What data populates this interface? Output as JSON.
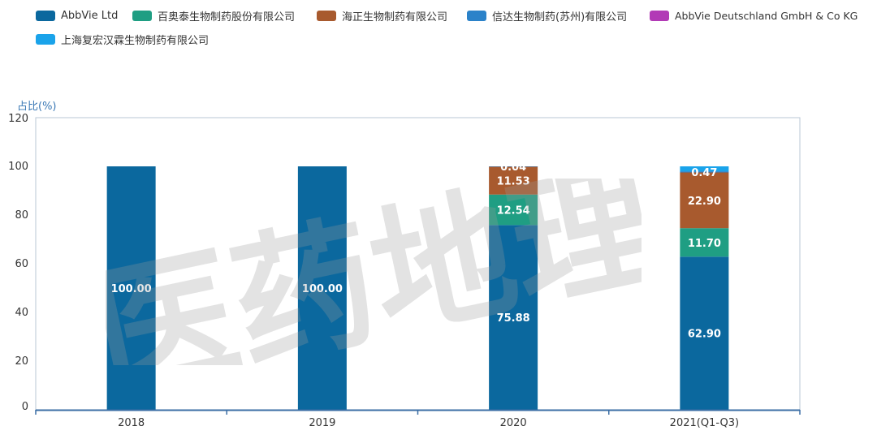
{
  "colors": {
    "abbvie": "#0b689e",
    "baiao": "#1f9e83",
    "haizheng": "#a85a2e",
    "xinda": "#2b82c9",
    "abbvie_de": "#b23ab6",
    "fuhong": "#1aa3ea"
  },
  "watermark": {
    "text": "医药地理"
  },
  "chart_data": {
    "type": "bar",
    "stacked": true,
    "ylabel": "占比(%)",
    "ylim": [
      0,
      120
    ],
    "yticks": [
      0,
      20,
      40,
      60,
      80,
      100,
      120
    ],
    "categories": [
      "2018",
      "2019",
      "2020",
      "2021(Q1-Q3)"
    ],
    "legend_position": "top-left",
    "grid": false,
    "series": [
      {
        "name": "AbbVie Ltd",
        "color_key": "abbvie",
        "values": [
          100.0,
          100.0,
          75.88,
          62.9
        ],
        "labels": [
          "100.00",
          "100.00",
          "75.88",
          "62.90"
        ]
      },
      {
        "name": "百奥泰生物制药股份有限公司",
        "color_key": "baiao",
        "values": [
          0,
          0,
          12.54,
          11.7
        ],
        "labels": [
          "",
          "",
          "12.54",
          "11.70"
        ]
      },
      {
        "name": "海正生物制药有限公司",
        "color_key": "haizheng",
        "values": [
          0,
          0,
          11.53,
          22.9
        ],
        "labels": [
          "",
          "",
          "11.53",
          "22.90"
        ]
      },
      {
        "name": "信达生物制药(苏州)有限公司",
        "color_key": "xinda",
        "values": [
          0,
          0,
          0.04,
          0.47
        ],
        "labels": [
          "",
          "",
          "0.04",
          "0.47"
        ]
      },
      {
        "name": "AbbVie Deutschland GmbH & Co KG",
        "color_key": "abbvie_de",
        "values": [
          0,
          0,
          0,
          0
        ],
        "labels": [
          "",
          "",
          "",
          ""
        ]
      },
      {
        "name": "上海复宏汉霖生物制药有限公司",
        "color_key": "fuhong",
        "values": [
          0,
          0,
          0,
          2.03
        ],
        "labels": [
          "",
          "",
          "",
          ""
        ]
      }
    ]
  }
}
